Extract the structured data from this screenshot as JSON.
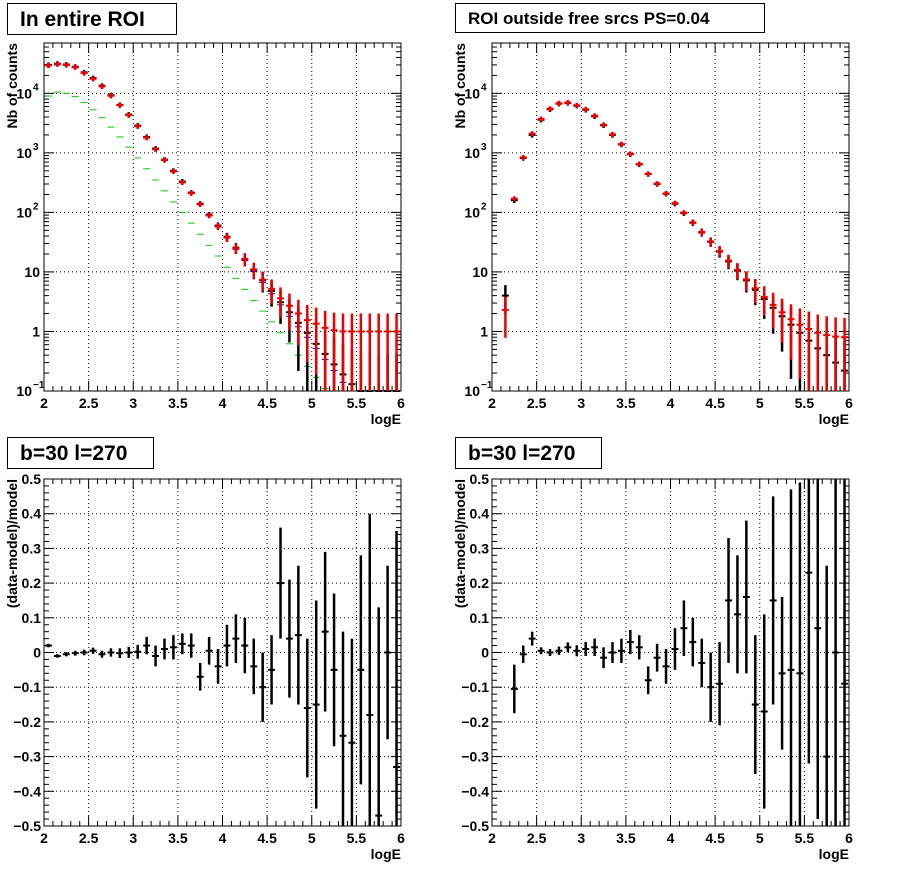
{
  "chart_data": [
    {
      "type": "scatter",
      "title": "In entire ROI",
      "xlabel": "logE",
      "ylabel": "Nb of counts",
      "xlim": [
        2,
        6
      ],
      "ylim": [
        0.1,
        70000
      ],
      "yscale": "log",
      "grid": true,
      "xticks": [
        "2",
        "2.5",
        "3",
        "3.5",
        "4",
        "4.5",
        "5",
        "5.5",
        "6"
      ],
      "yticks": [
        {
          "value": 0.1,
          "label": "10",
          "exp": "−1"
        },
        {
          "value": 1,
          "label": "1",
          "exp": ""
        },
        {
          "value": 10,
          "label": "10",
          "exp": ""
        },
        {
          "value": 100,
          "label": "10",
          "exp": "2"
        },
        {
          "value": 1000,
          "label": "10",
          "exp": "3"
        },
        {
          "value": 10000,
          "label": "10",
          "exp": "4"
        }
      ],
      "x": [
        2.05,
        2.15,
        2.25,
        2.35,
        2.45,
        2.55,
        2.65,
        2.75,
        2.85,
        2.95,
        3.05,
        3.15,
        3.25,
        3.35,
        3.45,
        3.55,
        3.65,
        3.75,
        3.85,
        3.95,
        4.05,
        4.15,
        4.25,
        4.35,
        4.45,
        4.55,
        4.65,
        4.75,
        4.85,
        4.95,
        5.05,
        5.15,
        5.25,
        5.35,
        5.45,
        5.55,
        5.65,
        5.75,
        5.85,
        5.95
      ],
      "series": [
        {
          "color": "#0000cc",
          "marker": "bar",
          "values": [
            29000,
            30000,
            29500,
            27000,
            22000,
            17500,
            13000,
            9200,
            6300,
            4300,
            2800,
            1800,
            1150,
            750,
            480,
            320,
            210,
            135,
            88,
            57,
            37,
            24,
            15.5,
            10.2,
            6.6,
            4.3,
            2.8,
            1.8,
            1.2,
            0.8,
            0.52,
            0.34,
            0.22,
            0.14,
            0.1,
            0.1,
            0.1,
            0.1,
            0.1,
            0.1
          ]
        },
        {
          "color": "#00cc00",
          "marker": "bar",
          "values": [
            9000,
            10500,
            10000,
            8800,
            7000,
            5300,
            3900,
            2700,
            1850,
            1250,
            820,
            540,
            350,
            230,
            150,
            100,
            66,
            43,
            28,
            18.5,
            12,
            7.8,
            5.1,
            3.3,
            2.2,
            1.45,
            0.95,
            0.62,
            0.4,
            0.26,
            0.17,
            0.11,
            0.1,
            0.1,
            0.1,
            0.1,
            0.1,
            0.1,
            0.1,
            0.1
          ]
        },
        {
          "color": "#000000",
          "marker": "cross",
          "err": 0.1,
          "values": [
            30000,
            31500,
            30500,
            28000,
            22500,
            18000,
            13400,
            9300,
            6400,
            4400,
            2870,
            1850,
            1180,
            770,
            500,
            330,
            215,
            140,
            92,
            60,
            39,
            25.5,
            16.5,
            10.8,
            7.2,
            4.8,
            3.1,
            2.1,
            1.4,
            0.95,
            0.62,
            0.42,
            0.28,
            0.19,
            0.13,
            0.1,
            0.1,
            0.1,
            0.1,
            0.1
          ]
        },
        {
          "color": "#ee0000",
          "marker": "cross",
          "err": 0.1,
          "values": [
            29500,
            31000,
            30000,
            27500,
            22000,
            17500,
            13100,
            9100,
            6300,
            4300,
            2800,
            1800,
            1150,
            760,
            490,
            320,
            210,
            137,
            89,
            58,
            38,
            25,
            16.4,
            11,
            7.4,
            5.2,
            3.6,
            2.7,
            2,
            1.55,
            1.35,
            1.15,
            1.05,
            1,
            1,
            1,
            1,
            1,
            1,
            1
          ]
        }
      ]
    },
    {
      "type": "scatter",
      "title": "ROI outside free srcs PS=0.04",
      "xlabel": "logE",
      "ylabel": "Nb of counts",
      "xlim": [
        2,
        6
      ],
      "ylim": [
        0.1,
        70000
      ],
      "yscale": "log",
      "grid": true,
      "xticks": [
        "2",
        "2.5",
        "3",
        "3.5",
        "4",
        "4.5",
        "5",
        "5.5",
        "6"
      ],
      "yticks": [
        {
          "value": 0.1,
          "label": "10",
          "exp": "−1"
        },
        {
          "value": 1,
          "label": "1",
          "exp": ""
        },
        {
          "value": 10,
          "label": "10",
          "exp": ""
        },
        {
          "value": 100,
          "label": "10",
          "exp": "2"
        },
        {
          "value": 1000,
          "label": "10",
          "exp": "3"
        },
        {
          "value": 10000,
          "label": "10",
          "exp": "4"
        }
      ],
      "x": [
        2.15,
        2.25,
        2.35,
        2.45,
        2.55,
        2.65,
        2.75,
        2.85,
        2.95,
        3.05,
        3.15,
        3.25,
        3.35,
        3.45,
        3.55,
        3.65,
        3.75,
        3.85,
        3.95,
        4.05,
        4.15,
        4.25,
        4.35,
        4.45,
        4.55,
        4.65,
        4.75,
        4.85,
        4.95,
        5.05,
        5.15,
        5.25,
        5.35,
        5.45,
        5.55,
        5.65,
        5.75,
        5.85,
        5.95
      ],
      "series": [
        {
          "color": "#000000",
          "marker": "cross",
          "err": 0.1,
          "values": [
            4,
            160,
            820,
            2000,
            3600,
            5400,
            6700,
            6900,
            6200,
            5300,
            4100,
            2900,
            2000,
            1380,
            950,
            640,
            440,
            300,
            205,
            140,
            97,
            67,
            46,
            32,
            22,
            15,
            10.5,
            7.2,
            5,
            3.5,
            2.5,
            1.8,
            1.3,
            0.95,
            0.7,
            0.52,
            0.4,
            0.3,
            0.22
          ]
        },
        {
          "color": "#ee0000",
          "marker": "cross",
          "err": 0.1,
          "values": [
            2.3,
            170,
            840,
            2100,
            3700,
            5500,
            6800,
            7000,
            6300,
            5400,
            4200,
            2950,
            2050,
            1400,
            960,
            650,
            445,
            305,
            208,
            143,
            99,
            68,
            47,
            32.5,
            22.5,
            15.5,
            10.8,
            7.5,
            5.3,
            3.8,
            2.8,
            2.1,
            1.6,
            1.3,
            1.1,
            0.95,
            0.87,
            0.82,
            0.8
          ]
        }
      ]
    },
    {
      "type": "scatter",
      "title": "b=30 l=270",
      "xlabel": "logE",
      "ylabel": "(data-model)/model",
      "xlim": [
        2,
        6
      ],
      "ylim": [
        -0.5,
        0.5
      ],
      "grid": true,
      "xticks": [
        "2",
        "2.5",
        "3",
        "3.5",
        "4",
        "4.5",
        "5",
        "5.5",
        "6"
      ],
      "yticks": [
        {
          "value": -0.5,
          "label": "−0.5",
          "exp": ""
        },
        {
          "value": -0.4,
          "label": "−0.4",
          "exp": ""
        },
        {
          "value": -0.3,
          "label": "−0.3",
          "exp": ""
        },
        {
          "value": -0.2,
          "label": "−0.2",
          "exp": ""
        },
        {
          "value": -0.1,
          "label": "−0.1",
          "exp": ""
        },
        {
          "value": 0,
          "label": "0",
          "exp": ""
        },
        {
          "value": 0.1,
          "label": "0.1",
          "exp": ""
        },
        {
          "value": 0.2,
          "label": "0.2",
          "exp": ""
        },
        {
          "value": 0.3,
          "label": "0.3",
          "exp": ""
        },
        {
          "value": 0.4,
          "label": "0.4",
          "exp": ""
        },
        {
          "value": 0.5,
          "label": "0.5",
          "exp": ""
        }
      ],
      "x": [
        2.05,
        2.15,
        2.25,
        2.35,
        2.45,
        2.55,
        2.65,
        2.75,
        2.85,
        2.95,
        3.05,
        3.15,
        3.25,
        3.35,
        3.45,
        3.55,
        3.65,
        3.75,
        3.85,
        3.95,
        4.05,
        4.15,
        4.25,
        4.35,
        4.45,
        4.55,
        4.65,
        4.75,
        4.85,
        4.95,
        5.05,
        5.15,
        5.25,
        5.35,
        5.45,
        5.55,
        5.65,
        5.75,
        5.85,
        5.95
      ],
      "series": [
        {
          "color": "#000000",
          "marker": "cross",
          "values": [
            0.02,
            -0.01,
            -0.005,
            -0.002,
            0.0,
            0.005,
            -0.005,
            0.0,
            -0.002,
            0.0,
            0.002,
            0.02,
            -0.01,
            0.01,
            0.015,
            0.025,
            0.02,
            -0.07,
            0.005,
            -0.04,
            0.02,
            0.04,
            0.02,
            -0.04,
            -0.1,
            -0.05,
            0.2,
            0.04,
            0.05,
            -0.16,
            -0.15,
            0.06,
            -0.05,
            -0.24,
            -0.26,
            -0.05,
            -0.18,
            -0.47,
            0.0,
            -0.33
          ],
          "err": [
            0.005,
            0.005,
            0.006,
            0.007,
            0.008,
            0.009,
            0.01,
            0.012,
            0.014,
            0.016,
            0.02,
            0.025,
            0.03,
            0.03,
            0.035,
            0.03,
            0.035,
            0.04,
            0.04,
            0.05,
            0.06,
            0.07,
            0.08,
            0.08,
            0.1,
            0.1,
            0.16,
            0.17,
            0.2,
            0.2,
            0.3,
            0.23,
            0.22,
            0.3,
            0.3,
            0.33,
            0.58,
            0.6,
            0.25,
            0.68
          ]
        }
      ]
    },
    {
      "type": "scatter",
      "title": "b=30 l=270",
      "xlabel": "logE",
      "ylabel": "(data-model)/model",
      "xlim": [
        2,
        6
      ],
      "ylim": [
        -0.5,
        0.5
      ],
      "grid": true,
      "xticks": [
        "2",
        "2.5",
        "3",
        "3.5",
        "4",
        "4.5",
        "5",
        "5.5",
        "6"
      ],
      "yticks": [
        {
          "value": -0.5,
          "label": "−0.5",
          "exp": ""
        },
        {
          "value": -0.4,
          "label": "−0.4",
          "exp": ""
        },
        {
          "value": -0.3,
          "label": "−0.3",
          "exp": ""
        },
        {
          "value": -0.2,
          "label": "−0.2",
          "exp": ""
        },
        {
          "value": -0.1,
          "label": "−0.1",
          "exp": ""
        },
        {
          "value": 0,
          "label": "0",
          "exp": ""
        },
        {
          "value": 0.1,
          "label": "0.1",
          "exp": ""
        },
        {
          "value": 0.2,
          "label": "0.2",
          "exp": ""
        },
        {
          "value": 0.3,
          "label": "0.3",
          "exp": ""
        },
        {
          "value": 0.4,
          "label": "0.4",
          "exp": ""
        },
        {
          "value": 0.5,
          "label": "0.5",
          "exp": ""
        }
      ],
      "x": [
        2.25,
        2.35,
        2.45,
        2.55,
        2.65,
        2.75,
        2.85,
        2.95,
        3.05,
        3.15,
        3.25,
        3.35,
        3.45,
        3.55,
        3.65,
        3.75,
        3.85,
        3.95,
        4.05,
        4.15,
        4.25,
        4.35,
        4.45,
        4.55,
        4.65,
        4.75,
        4.85,
        4.95,
        5.05,
        5.15,
        5.25,
        5.35,
        5.45,
        5.55,
        5.65,
        5.75,
        5.85,
        5.95
      ],
      "series": [
        {
          "color": "#000000",
          "marker": "cross",
          "values": [
            -0.105,
            -0.005,
            0.04,
            0.005,
            0.0,
            0.005,
            0.015,
            0.005,
            0.01,
            0.015,
            -0.015,
            0.0,
            0.005,
            0.03,
            0.015,
            -0.08,
            -0.015,
            -0.04,
            0.01,
            0.07,
            0.03,
            -0.03,
            -0.1,
            -0.09,
            0.15,
            0.11,
            0.16,
            -0.15,
            -0.17,
            0.15,
            -0.06,
            -0.05,
            -0.06,
            0.23,
            0.07,
            -0.3,
            0.0,
            -0.09
          ],
          "err": [
            0.07,
            0.025,
            0.02,
            0.01,
            0.01,
            0.012,
            0.014,
            0.016,
            0.02,
            0.025,
            0.03,
            0.03,
            0.035,
            0.035,
            0.035,
            0.04,
            0.04,
            0.05,
            0.06,
            0.08,
            0.07,
            0.07,
            0.1,
            0.12,
            0.18,
            0.17,
            0.22,
            0.2,
            0.28,
            0.3,
            0.22,
            0.52,
            0.55,
            0.55,
            0.55,
            0.55,
            0.6,
            0.6
          ]
        }
      ]
    }
  ]
}
